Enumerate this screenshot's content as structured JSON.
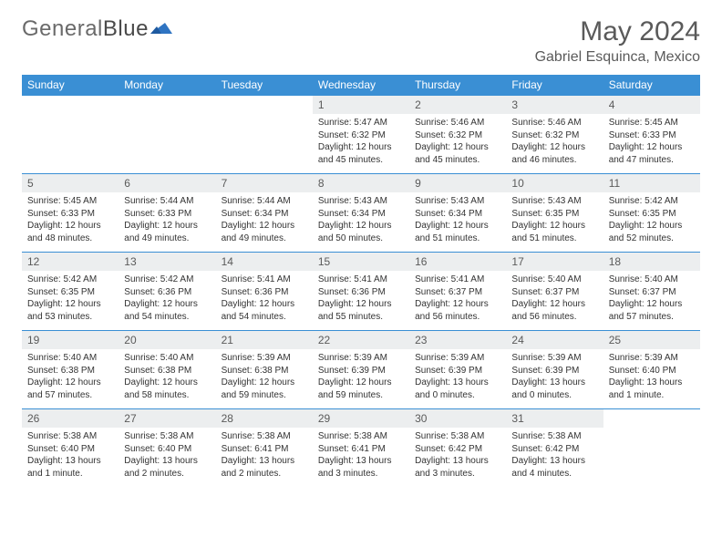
{
  "brand": {
    "part1": "General",
    "part2": "Blue"
  },
  "title": "May 2024",
  "location": "Gabriel Esquinca, Mexico",
  "colors": {
    "header_bg": "#3a8fd4",
    "header_fg": "#ffffff",
    "row_border": "#3a8fd4",
    "daynum_bg": "#eceeef",
    "text": "#333333",
    "logo_blue": "#2f74c2"
  },
  "day_names": [
    "Sunday",
    "Monday",
    "Tuesday",
    "Wednesday",
    "Thursday",
    "Friday",
    "Saturday"
  ],
  "weeks": [
    [
      null,
      null,
      null,
      {
        "n": "1",
        "sr": "5:47 AM",
        "ss": "6:32 PM",
        "dl": "12 hours and 45 minutes."
      },
      {
        "n": "2",
        "sr": "5:46 AM",
        "ss": "6:32 PM",
        "dl": "12 hours and 45 minutes."
      },
      {
        "n": "3",
        "sr": "5:46 AM",
        "ss": "6:32 PM",
        "dl": "12 hours and 46 minutes."
      },
      {
        "n": "4",
        "sr": "5:45 AM",
        "ss": "6:33 PM",
        "dl": "12 hours and 47 minutes."
      }
    ],
    [
      {
        "n": "5",
        "sr": "5:45 AM",
        "ss": "6:33 PM",
        "dl": "12 hours and 48 minutes."
      },
      {
        "n": "6",
        "sr": "5:44 AM",
        "ss": "6:33 PM",
        "dl": "12 hours and 49 minutes."
      },
      {
        "n": "7",
        "sr": "5:44 AM",
        "ss": "6:34 PM",
        "dl": "12 hours and 49 minutes."
      },
      {
        "n": "8",
        "sr": "5:43 AM",
        "ss": "6:34 PM",
        "dl": "12 hours and 50 minutes."
      },
      {
        "n": "9",
        "sr": "5:43 AM",
        "ss": "6:34 PM",
        "dl": "12 hours and 51 minutes."
      },
      {
        "n": "10",
        "sr": "5:43 AM",
        "ss": "6:35 PM",
        "dl": "12 hours and 51 minutes."
      },
      {
        "n": "11",
        "sr": "5:42 AM",
        "ss": "6:35 PM",
        "dl": "12 hours and 52 minutes."
      }
    ],
    [
      {
        "n": "12",
        "sr": "5:42 AM",
        "ss": "6:35 PM",
        "dl": "12 hours and 53 minutes."
      },
      {
        "n": "13",
        "sr": "5:42 AM",
        "ss": "6:36 PM",
        "dl": "12 hours and 54 minutes."
      },
      {
        "n": "14",
        "sr": "5:41 AM",
        "ss": "6:36 PM",
        "dl": "12 hours and 54 minutes."
      },
      {
        "n": "15",
        "sr": "5:41 AM",
        "ss": "6:36 PM",
        "dl": "12 hours and 55 minutes."
      },
      {
        "n": "16",
        "sr": "5:41 AM",
        "ss": "6:37 PM",
        "dl": "12 hours and 56 minutes."
      },
      {
        "n": "17",
        "sr": "5:40 AM",
        "ss": "6:37 PM",
        "dl": "12 hours and 56 minutes."
      },
      {
        "n": "18",
        "sr": "5:40 AM",
        "ss": "6:37 PM",
        "dl": "12 hours and 57 minutes."
      }
    ],
    [
      {
        "n": "19",
        "sr": "5:40 AM",
        "ss": "6:38 PM",
        "dl": "12 hours and 57 minutes."
      },
      {
        "n": "20",
        "sr": "5:40 AM",
        "ss": "6:38 PM",
        "dl": "12 hours and 58 minutes."
      },
      {
        "n": "21",
        "sr": "5:39 AM",
        "ss": "6:38 PM",
        "dl": "12 hours and 59 minutes."
      },
      {
        "n": "22",
        "sr": "5:39 AM",
        "ss": "6:39 PM",
        "dl": "12 hours and 59 minutes."
      },
      {
        "n": "23",
        "sr": "5:39 AM",
        "ss": "6:39 PM",
        "dl": "13 hours and 0 minutes."
      },
      {
        "n": "24",
        "sr": "5:39 AM",
        "ss": "6:39 PM",
        "dl": "13 hours and 0 minutes."
      },
      {
        "n": "25",
        "sr": "5:39 AM",
        "ss": "6:40 PM",
        "dl": "13 hours and 1 minute."
      }
    ],
    [
      {
        "n": "26",
        "sr": "5:38 AM",
        "ss": "6:40 PM",
        "dl": "13 hours and 1 minute."
      },
      {
        "n": "27",
        "sr": "5:38 AM",
        "ss": "6:40 PM",
        "dl": "13 hours and 2 minutes."
      },
      {
        "n": "28",
        "sr": "5:38 AM",
        "ss": "6:41 PM",
        "dl": "13 hours and 2 minutes."
      },
      {
        "n": "29",
        "sr": "5:38 AM",
        "ss": "6:41 PM",
        "dl": "13 hours and 3 minutes."
      },
      {
        "n": "30",
        "sr": "5:38 AM",
        "ss": "6:42 PM",
        "dl": "13 hours and 3 minutes."
      },
      {
        "n": "31",
        "sr": "5:38 AM",
        "ss": "6:42 PM",
        "dl": "13 hours and 4 minutes."
      },
      null
    ]
  ],
  "labels": {
    "sunrise": "Sunrise:",
    "sunset": "Sunset:",
    "daylight": "Daylight:"
  }
}
